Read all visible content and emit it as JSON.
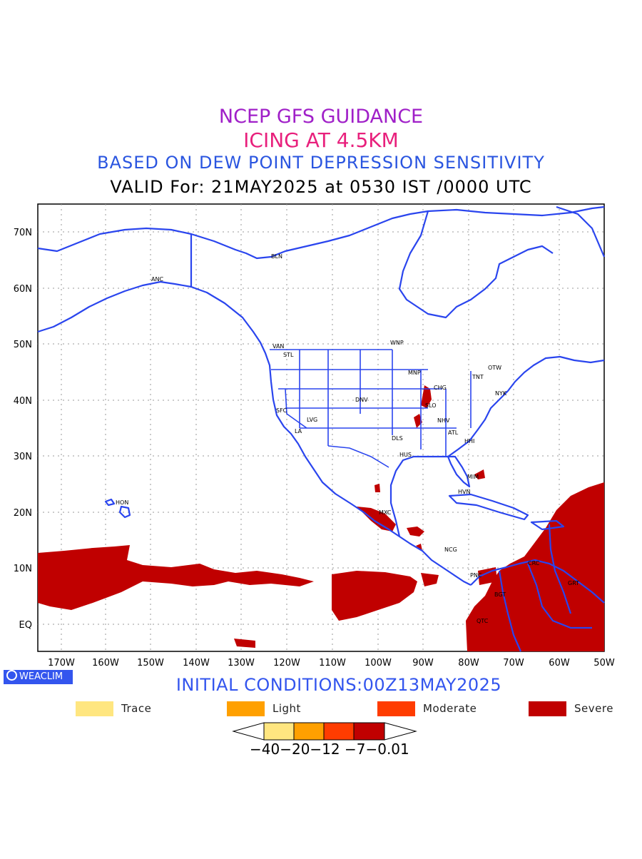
{
  "titles": {
    "line1": "NCEP GFS GUIDANCE",
    "line2": "ICING AT 4.5KM",
    "line3": "BASED ON DEW POINT DEPRESSION SENSITIVITY",
    "line4": "VALID For: 21MAY2025 at 0530 IST /0000 UTC"
  },
  "axes": {
    "lat_labels": [
      "70N",
      "60N",
      "50N",
      "40N",
      "30N",
      "20N",
      "10N",
      "EQ"
    ],
    "lon_labels": [
      "170W",
      "160W",
      "150W",
      "140W",
      "130W",
      "120W",
      "110W",
      "100W",
      "90W",
      "80W",
      "70W",
      "60W",
      "50W"
    ]
  },
  "stations": [
    "ANC",
    "BLN",
    "VAN",
    "STL",
    "WNP",
    "MNP",
    "OTW",
    "TNT",
    "CHG",
    "NYK",
    "DNV",
    "SFC",
    "LVG",
    "LA",
    "SLO",
    "NHV",
    "ATL",
    "DLS",
    "HHI",
    "HUS",
    "MIM",
    "HVN",
    "HON",
    "MXC",
    "NCG",
    "PNC",
    "CRC",
    "BGT",
    "GRT",
    "QTC"
  ],
  "badge_label": "WEACLIM",
  "initial_conditions": "INITIAL CONDITIONS:00Z13MAY2025",
  "legend": [
    {
      "label": "Trace",
      "color": "#ffe680"
    },
    {
      "label": "Light",
      "color": "#ffa000"
    },
    {
      "label": "Moderate",
      "color": "#ff3c00"
    },
    {
      "label": "Severe",
      "color": "#c00000"
    }
  ],
  "colorbar": {
    "ticks": "−40−20−12 −7−0.01"
  },
  "colors": {
    "coast": "#2a45ee",
    "icing_severe": "#c00000"
  }
}
